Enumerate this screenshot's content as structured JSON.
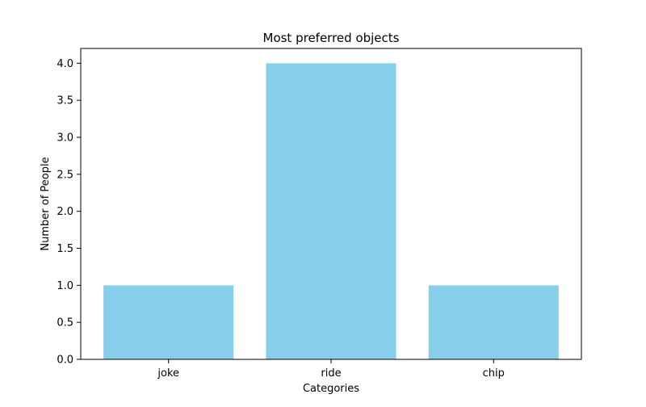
{
  "chart_data": {
    "type": "bar",
    "title": "Most preferred objects",
    "xlabel": "Categories",
    "ylabel": "Number of People",
    "categories": [
      "joke",
      "ride",
      "chip"
    ],
    "values": [
      1,
      4,
      1
    ],
    "ylim": [
      0,
      4.2
    ],
    "yticks": [
      "0.0",
      "0.5",
      "1.0",
      "1.5",
      "2.0",
      "2.5",
      "3.0",
      "3.5",
      "4.0"
    ],
    "grid": false,
    "legend": "none",
    "bar_color": "#87ceeb"
  }
}
